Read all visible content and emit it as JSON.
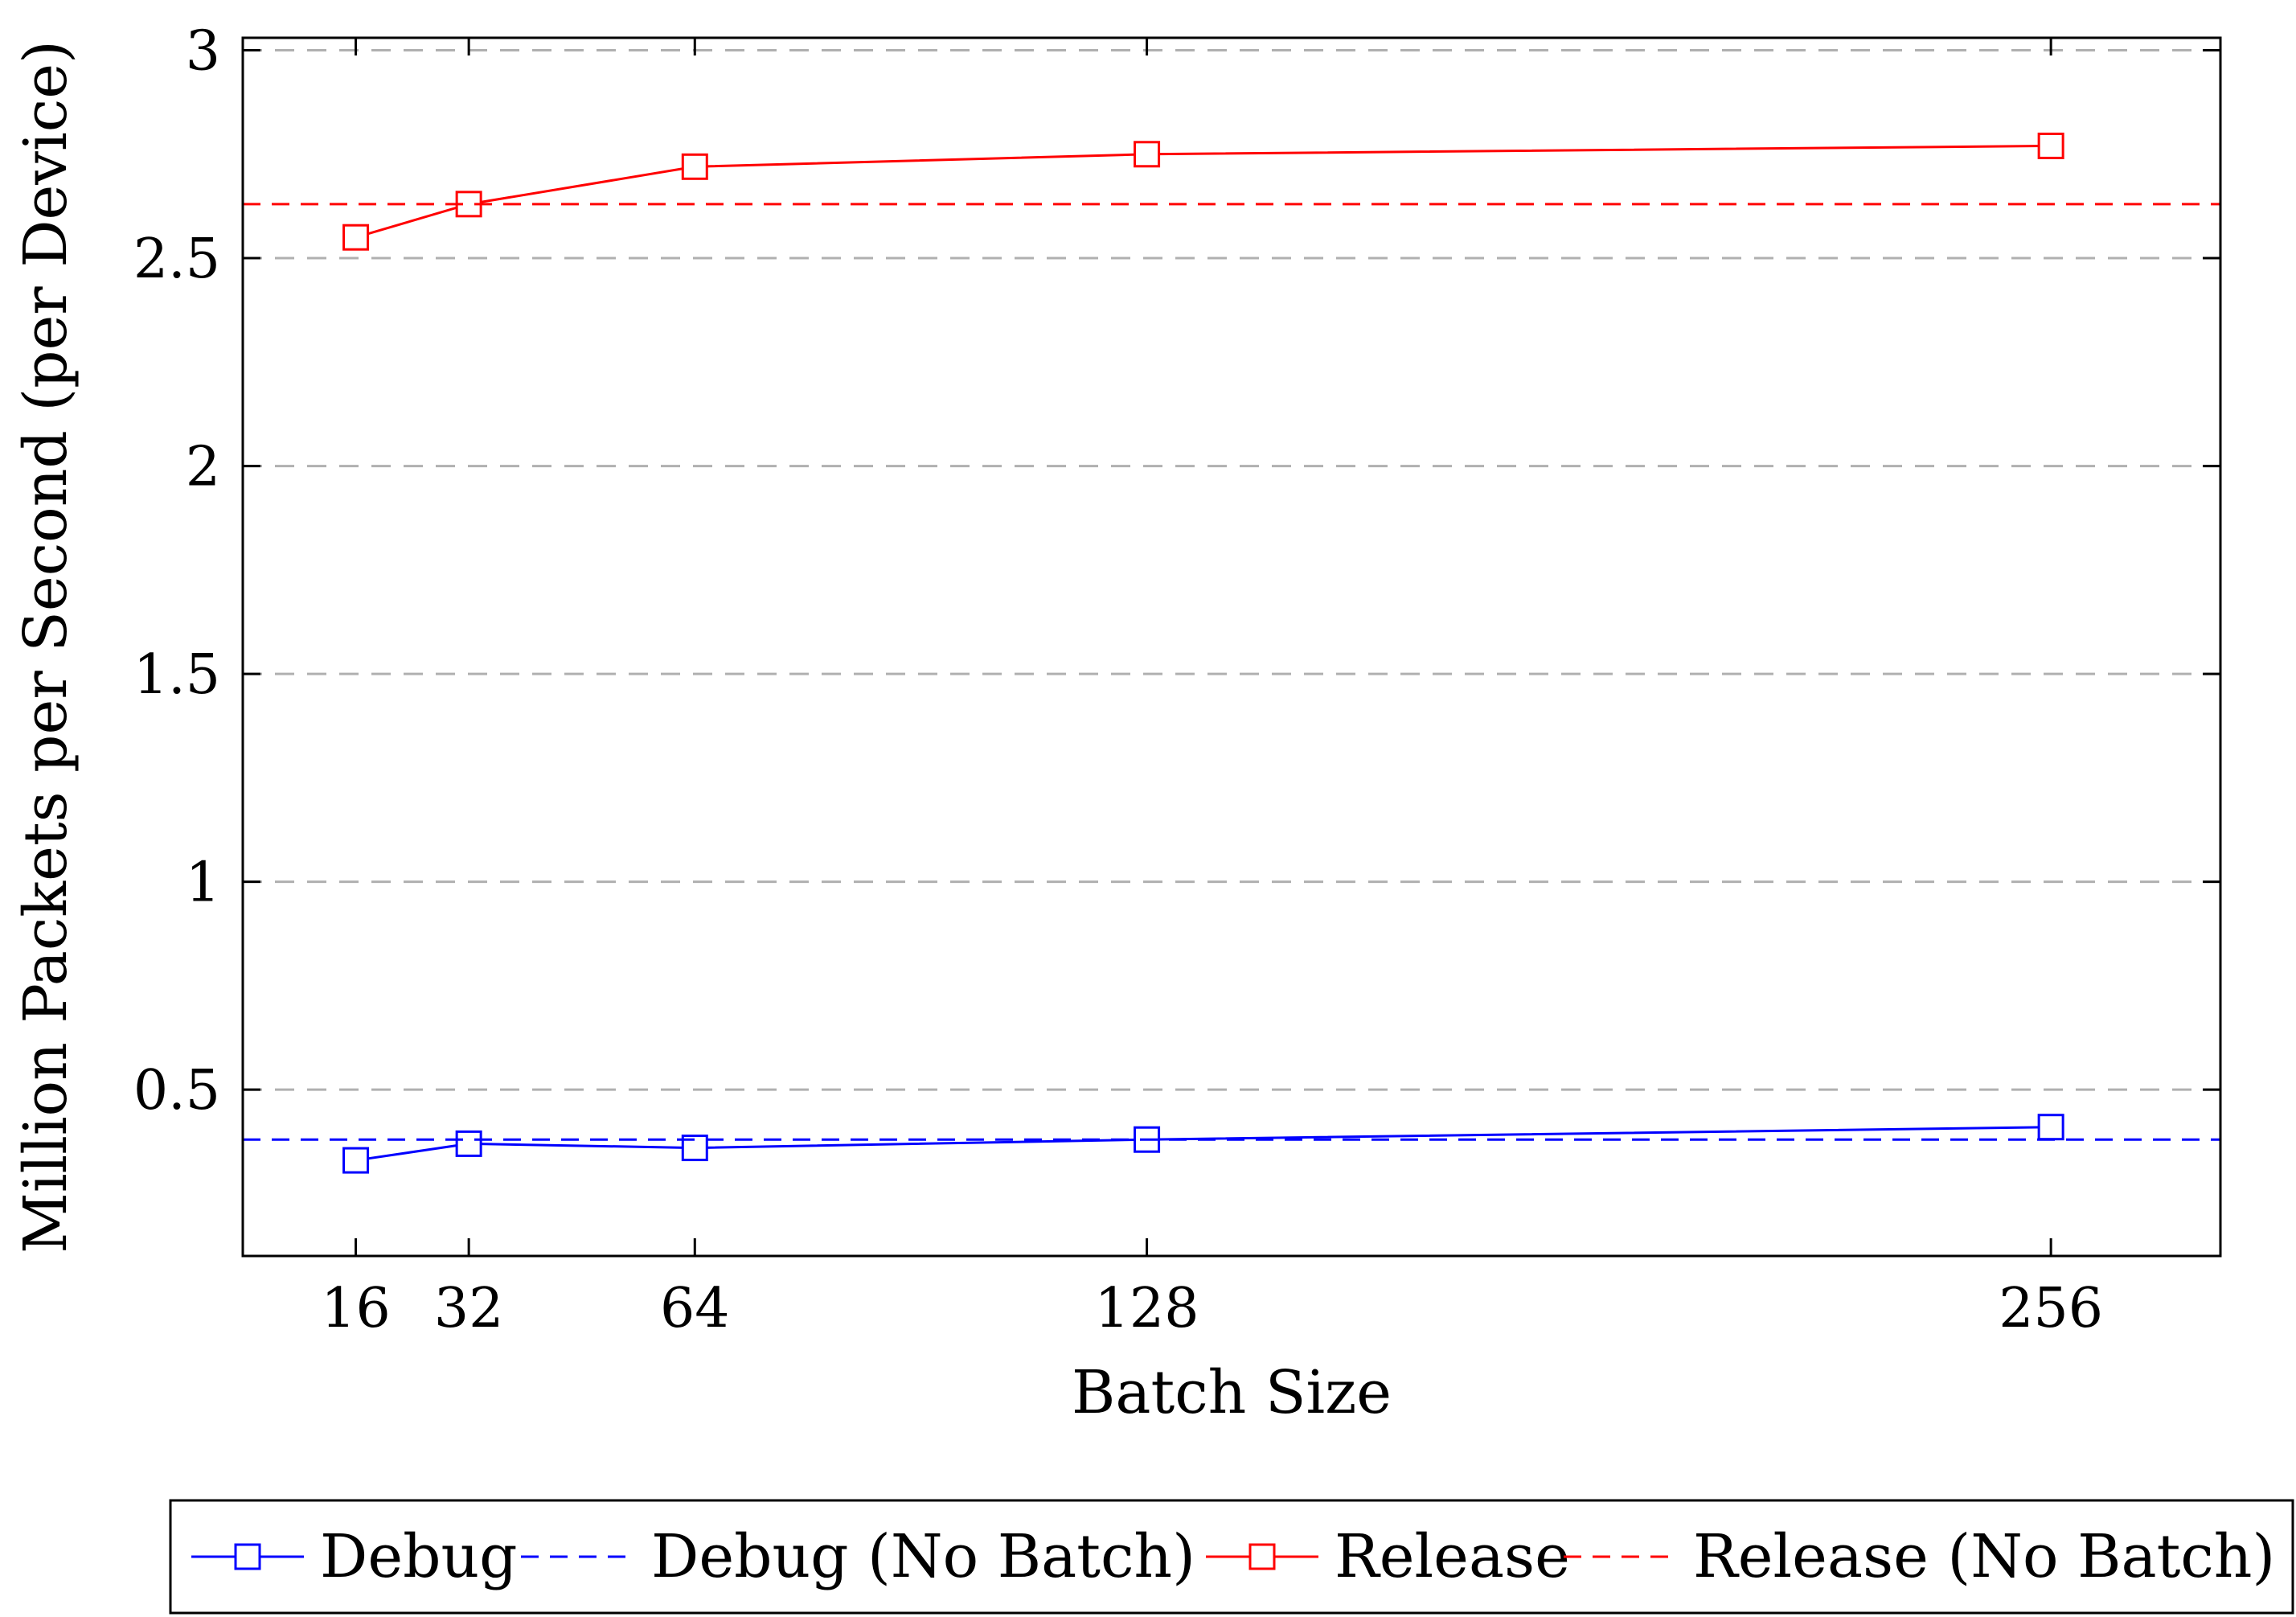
{
  "chart_data": {
    "type": "line",
    "xlabel": "Batch Size",
    "ylabel": "Million Packets per Second (per Device)",
    "x": [
      16,
      32,
      64,
      128,
      256
    ],
    "xticks": [
      "16",
      "32",
      "64",
      "128",
      "256"
    ],
    "yticks": [
      "0.5",
      "1",
      "1.5",
      "2",
      "2.5",
      "3"
    ],
    "xlim": [
      0,
      280
    ],
    "ylim": [
      0.1,
      3.03
    ],
    "grid": "horizontal-dashed",
    "legend_position": "bottom",
    "series": [
      {
        "name": "Debug",
        "style": "solid",
        "marker": "square",
        "color": "#0000ff",
        "values": [
          0.33,
          0.37,
          0.36,
          0.38,
          0.41
        ]
      },
      {
        "name": "Debug (No Batch)",
        "style": "dashed",
        "marker": "none",
        "color": "#0000ff",
        "constant": 0.38
      },
      {
        "name": "Release",
        "style": "solid",
        "marker": "square",
        "color": "#ff0000",
        "values": [
          2.55,
          2.63,
          2.72,
          2.75,
          2.77
        ]
      },
      {
        "name": "Release (No Batch)",
        "style": "dashed",
        "marker": "none",
        "color": "#ff0000",
        "constant": 2.63
      }
    ]
  }
}
